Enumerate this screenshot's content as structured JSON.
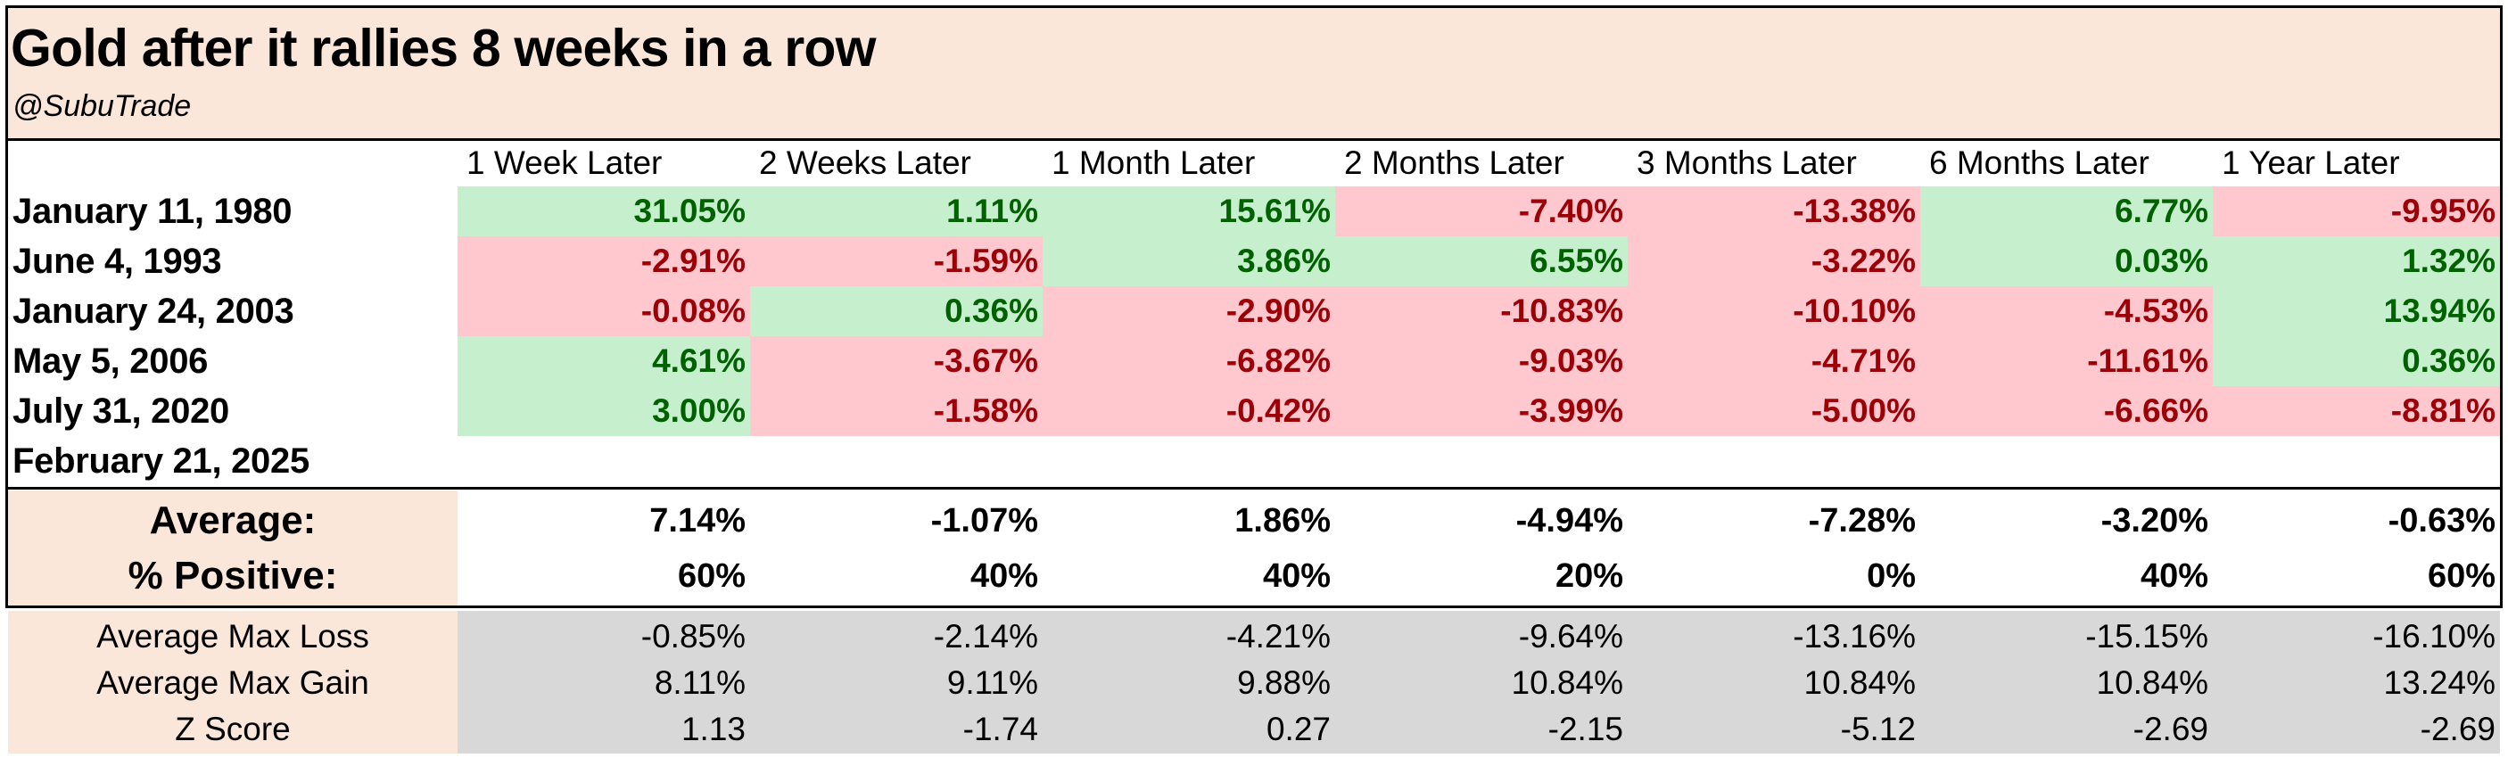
{
  "header": {
    "title": "Gold after it rallies 8 weeks in a row",
    "handle": "@SubuTrade"
  },
  "columns": [
    "1 Week Later",
    "2 Weeks Later",
    "1 Month Later",
    "2 Months Later",
    "3 Months Later",
    "6 Months Later",
    "1 Year Later"
  ],
  "rows": [
    {
      "date": "January 11, 1980",
      "values": [
        "31.05%",
        "1.11%",
        "15.61%",
        "-7.40%",
        "-13.38%",
        "6.77%",
        "-9.95%"
      ]
    },
    {
      "date": "June 4, 1993",
      "values": [
        "-2.91%",
        "-1.59%",
        "3.86%",
        "6.55%",
        "-3.22%",
        "0.03%",
        "1.32%"
      ]
    },
    {
      "date": "January 24, 2003",
      "values": [
        "-0.08%",
        "0.36%",
        "-2.90%",
        "-10.83%",
        "-10.10%",
        "-4.53%",
        "13.94%"
      ]
    },
    {
      "date": "May 5, 2006",
      "values": [
        "4.61%",
        "-3.67%",
        "-6.82%",
        "-9.03%",
        "-4.71%",
        "-11.61%",
        "0.36%"
      ]
    },
    {
      "date": "July 31, 2020",
      "values": [
        "3.00%",
        "-1.58%",
        "-0.42%",
        "-3.99%",
        "-5.00%",
        "-6.66%",
        "-8.81%"
      ]
    },
    {
      "date": "February 21, 2025",
      "values": []
    }
  ],
  "summary": [
    {
      "label": "Average:",
      "values": [
        "7.14%",
        "-1.07%",
        "1.86%",
        "-4.94%",
        "-7.28%",
        "-3.20%",
        "-0.63%"
      ]
    },
    {
      "label": "% Positive:",
      "values": [
        "60%",
        "40%",
        "40%",
        "20%",
        "0%",
        "40%",
        "60%"
      ]
    }
  ],
  "footer": [
    {
      "label": "Average Max Loss",
      "values": [
        "-0.85%",
        "-2.14%",
        "-4.21%",
        "-9.64%",
        "-13.16%",
        "-15.15%",
        "-16.10%"
      ]
    },
    {
      "label": "Average Max Gain",
      "values": [
        "8.11%",
        "9.11%",
        "9.88%",
        "10.84%",
        "10.84%",
        "10.84%",
        "13.24%"
      ]
    },
    {
      "label": "Z Score",
      "values": [
        "1.13",
        "-1.74",
        "0.27",
        "-2.15",
        "-5.12",
        "-2.69",
        "-2.69"
      ]
    }
  ],
  "colors": {
    "header_bg": "#fbe7da",
    "positive_bg": "#c6efce",
    "positive_text": "#006100",
    "negative_bg": "#ffc7ce",
    "negative_text": "#9c0006",
    "footer_bg": "#d8d8d8"
  }
}
